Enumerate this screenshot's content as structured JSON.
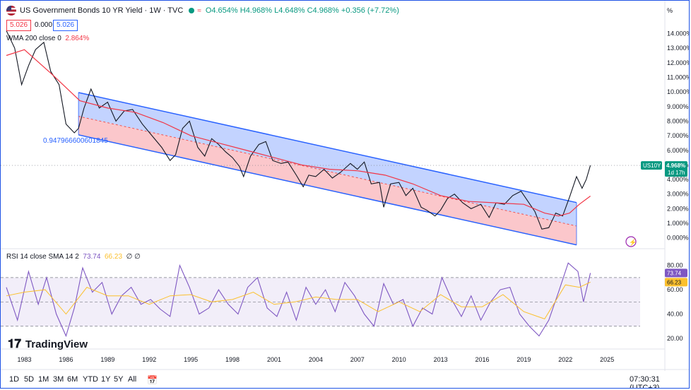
{
  "header": {
    "title": "US Government Bonds 10 YR Yield · 1W · TVC",
    "open": "O4.654%",
    "high": "H4.968%",
    "low": "L4.648%",
    "close": "C4.968%",
    "change": "+0.356 (+7.72%)",
    "sell_box": "5.026",
    "spread": "0.000",
    "buy_box": "5.026",
    "wma_label": "WMA 200 close 0",
    "wma_value": "2.864%",
    "channel_label": "0.947966600601845",
    "rsi_label": "RSI 14 close SMA 14 2",
    "rsi_value": "73.74",
    "rsi_sma": "66.23",
    "rsi_extra": "∅ ∅"
  },
  "price_tag": {
    "symbol": "US10Y",
    "price": "4.968%",
    "countdown": "1d 17h"
  },
  "bottom_toolbar": {
    "ranges": [
      "1D",
      "5D",
      "1M",
      "3M",
      "6M",
      "YTD",
      "1Y",
      "5Y",
      "All"
    ],
    "time": "07:30:31 (UTC+3)"
  },
  "logo": "TradingView",
  "colors": {
    "up": "#089981",
    "down": "#f23645",
    "channel_blue": "#2962ff",
    "wma": "#f23645",
    "rsi": "#7e57c2",
    "rsi_sma": "#fbc02d"
  },
  "chart_data": [
    {
      "type": "line",
      "title": "US Government Bonds 10 YR Yield",
      "ylabel": "%",
      "ylim": [
        -0.5,
        14.8
      ],
      "x_ticks": [
        "1983",
        "1986",
        "1989",
        "1992",
        "1995",
        "1998",
        "2001",
        "2004",
        "2007",
        "2010",
        "2013",
        "2016",
        "2019",
        "2022",
        "2025"
      ],
      "y_ticks": [
        "14.000%",
        "13.000%",
        "12.000%",
        "11.000%",
        "10.000%",
        "9.000%",
        "8.000%",
        "7.000%",
        "6.000%",
        "5.000%",
        "4.000%",
        "3.000%",
        "2.000%",
        "1.000%",
        "0.000%"
      ],
      "series": [
        {
          "x": [
            1981.7,
            1982.3,
            1982.8,
            1983.3,
            1983.8,
            1984.4,
            1984.9,
            1985.5,
            1986.0,
            1986.6,
            1986.9,
            1987.3,
            1987.8,
            1988.4,
            1989.0,
            1989.6,
            1990.2,
            1990.8,
            1991.5,
            1992.2,
            1992.9,
            1993.5,
            1993.9,
            1994.4,
            1994.9,
            1995.5,
            1996.0,
            1996.5,
            1997.0,
            1997.5,
            1998.0,
            1998.5,
            1998.8,
            1999.3,
            1999.9,
            2000.4,
            2000.9,
            2001.5,
            2002.0,
            2002.6,
            2003.1,
            2003.5,
            2004.0,
            2004.6,
            2005.2,
            2005.8,
            2006.5,
            2007.0,
            2007.5,
            2008.0,
            2008.6,
            2008.9,
            2009.4,
            2010.0,
            2010.5,
            2011.0,
            2011.6,
            2012.0,
            2012.6,
            2013.0,
            2013.5,
            2014.0,
            2014.6,
            2015.2,
            2015.9,
            2016.5,
            2017.0,
            2017.6,
            2018.2,
            2018.8,
            2019.3,
            2019.8,
            2020.3,
            2020.8,
            2021.3,
            2021.8,
            2022.3,
            2022.8,
            2023.2,
            2023.5,
            2023.8
          ],
          "y": [
            14.2,
            13.0,
            10.5,
            11.8,
            12.9,
            13.4,
            11.4,
            10.5,
            7.8,
            7.2,
            7.5,
            8.9,
            10.2,
            8.9,
            9.3,
            8.0,
            8.7,
            8.8,
            7.8,
            7.0,
            6.2,
            5.3,
            5.7,
            7.5,
            8.0,
            6.2,
            5.6,
            6.8,
            6.4,
            5.9,
            5.5,
            4.9,
            4.2,
            5.6,
            6.4,
            6.6,
            5.3,
            5.1,
            5.2,
            4.3,
            3.5,
            4.3,
            4.2,
            4.7,
            4.1,
            4.5,
            5.1,
            4.7,
            5.2,
            3.7,
            3.8,
            2.1,
            3.7,
            3.8,
            2.9,
            3.4,
            2.1,
            1.9,
            1.5,
            1.9,
            2.7,
            3.0,
            2.4,
            2.0,
            2.3,
            1.4,
            2.4,
            2.3,
            2.9,
            3.2,
            2.5,
            1.8,
            0.6,
            0.7,
            1.7,
            1.5,
            2.8,
            4.2,
            3.4,
            4.0,
            4.97
          ],
          "name": ""
        },
        {
          "x": [
            1981.7,
            1983,
            1985,
            1987,
            1989,
            1991,
            1993,
            1995,
            1997,
            1999,
            2001,
            2003,
            2005,
            2007,
            2009,
            2011,
            2013,
            2015,
            2017,
            2019,
            2020.5,
            2021.5,
            2022.3,
            2023,
            2023.8
          ],
          "y": [
            12.5,
            12.9,
            11.2,
            9.4,
            8.9,
            8.6,
            7.9,
            7.0,
            6.5,
            6.0,
            5.5,
            5.0,
            4.7,
            4.6,
            4.3,
            3.7,
            2.9,
            2.5,
            2.4,
            2.3,
            1.7,
            1.5,
            1.7,
            2.3,
            2.864
          ],
          "name": "WMA 200 close 0"
        }
      ],
      "channel": {
        "upper": [
          [
            1986.9,
            9.96
          ],
          [
            2022.8,
            2.42
          ]
        ],
        "middle": [
          [
            1986.9,
            8.33
          ],
          [
            2022.8,
            0.81
          ]
        ],
        "lower": [
          [
            1986.9,
            7.06
          ],
          [
            2022.8,
            -0.48
          ]
        ],
        "label": "0.947966600601845"
      },
      "last_price": 4.968
    },
    {
      "type": "line",
      "title": "RSI 14 close SMA 14 2",
      "ylim": [
        13,
        92
      ],
      "y_ticks": [
        "80.00",
        "60.00",
        "40.00",
        "20.00"
      ],
      "bands": [
        30,
        50,
        70
      ],
      "series": [
        {
          "name": "",
          "x": [
            1981.7,
            1982.5,
            1983.3,
            1984.0,
            1984.6,
            1985.3,
            1986.0,
            1986.6,
            1987.2,
            1987.9,
            1988.6,
            1989.3,
            1990.0,
            1990.7,
            1991.4,
            1992.1,
            1992.8,
            1993.5,
            1994.2,
            1994.9,
            1995.6,
            1996.3,
            1997.0,
            1997.7,
            1998.4,
            1999.1,
            1999.8,
            2000.5,
            2001.2,
            2001.9,
            2002.6,
            2003.3,
            2004.0,
            2004.7,
            2005.4,
            2006.1,
            2006.8,
            2007.5,
            2008.2,
            2008.9,
            2009.6,
            2010.3,
            2011.0,
            2011.7,
            2012.4,
            2013.1,
            2013.8,
            2014.5,
            2015.2,
            2015.9,
            2016.6,
            2017.3,
            2018.0,
            2018.7,
            2019.4,
            2020.1,
            2020.8,
            2021.5,
            2022.2,
            2022.9,
            2023.3,
            2023.8
          ],
          "y": [
            62,
            35,
            75,
            48,
            70,
            40,
            22,
            45,
            78,
            58,
            66,
            40,
            55,
            62,
            48,
            52,
            44,
            38,
            80,
            62,
            40,
            45,
            60,
            48,
            40,
            62,
            70,
            45,
            38,
            58,
            35,
            62,
            48,
            60,
            42,
            66,
            55,
            40,
            30,
            65,
            48,
            52,
            30,
            45,
            40,
            70,
            52,
            38,
            55,
            35,
            50,
            60,
            62,
            40,
            30,
            22,
            35,
            58,
            82,
            75,
            50,
            73.74
          ]
        },
        {
          "name": "",
          "x": [
            1981.7,
            1983,
            1984.5,
            1986,
            1987.5,
            1989,
            1990.5,
            1992,
            1993.5,
            1995,
            1996.5,
            1998,
            1999.5,
            2001,
            2002.5,
            2004,
            2005.5,
            2007,
            2008.5,
            2010,
            2011.5,
            2013,
            2014.5,
            2016,
            2017.5,
            2019,
            2020.5,
            2022,
            2023,
            2023.8
          ],
          "y": [
            55,
            58,
            60,
            40,
            62,
            55,
            55,
            48,
            55,
            56,
            50,
            52,
            58,
            48,
            50,
            54,
            52,
            52,
            42,
            50,
            42,
            56,
            46,
            46,
            56,
            42,
            36,
            64,
            62,
            66.23
          ]
        }
      ]
    }
  ]
}
